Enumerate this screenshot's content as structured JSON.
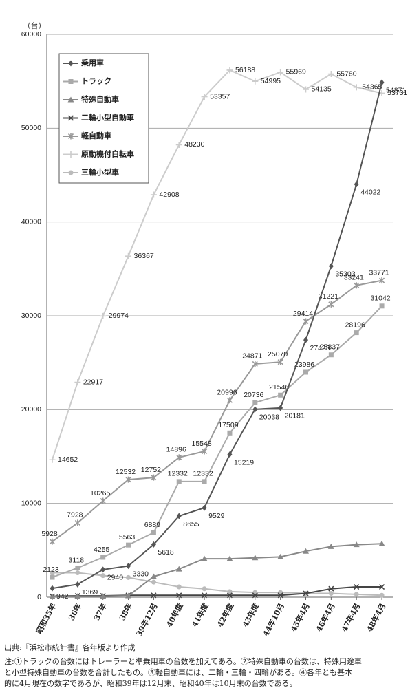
{
  "chart_data": {
    "type": "line",
    "unit_label": "（台）",
    "categories": [
      "昭和35年",
      "36年",
      "37年",
      "38年",
      "39年12月",
      "40年度",
      "41年度",
      "42年度",
      "43年度",
      "44年10月",
      "45年4月",
      "46年4月",
      "47年4月",
      "48年4月"
    ],
    "ylim": [
      0,
      60000
    ],
    "yticks": [
      0,
      10000,
      20000,
      30000,
      40000,
      50000,
      60000
    ],
    "grid": true,
    "legend": "top-left",
    "series": [
      {
        "name": "乗用車",
        "color": "#555555",
        "marker": "diamond",
        "show_labels": true,
        "values": [
          942,
          1369,
          2940,
          3330,
          5618,
          8655,
          9529,
          15219,
          20038,
          20181,
          27425,
          35303,
          44022,
          54871
        ]
      },
      {
        "name": "トラック",
        "color": "#aaaaaa",
        "marker": "square",
        "show_labels": true,
        "values": [
          2123,
          3118,
          4255,
          5563,
          6889,
          12332,
          12332,
          17509,
          20736,
          21546,
          23986,
          25837,
          28196,
          31042
        ]
      },
      {
        "name": "特殊自動車",
        "color": "#888888",
        "marker": "triangle",
        "show_labels": false,
        "values": [
          50,
          100,
          100,
          150,
          2200,
          3000,
          4100,
          4100,
          4200,
          4300,
          4900,
          5400,
          5600,
          5700
        ]
      },
      {
        "name": "二輪小型自動車",
        "color": "#444444",
        "marker": "x",
        "show_labels": false,
        "values": [
          100,
          150,
          150,
          200,
          200,
          200,
          200,
          200,
          200,
          200,
          400,
          900,
          1100,
          1100
        ]
      },
      {
        "name": "軽自動車",
        "color": "#999999",
        "marker": "asterisk",
        "show_labels": true,
        "values": [
          5928,
          7928,
          10265,
          12532,
          12752,
          14896,
          15548,
          20996,
          24871,
          25070,
          29414,
          31221,
          33241,
          33771
        ]
      },
      {
        "name": "原動機付自転車",
        "color": "#cccccc",
        "marker": "plus",
        "show_labels": true,
        "values": [
          14652,
          22917,
          29974,
          36367,
          42908,
          48230,
          53357,
          56188,
          54995,
          55969,
          54135,
          55780,
          54365,
          53731
        ]
      },
      {
        "name": "三輪小型車",
        "color": "#bbbbbb",
        "marker": "circle",
        "show_labels": false,
        "values": [
          2600,
          2600,
          2300,
          2100,
          1600,
          1100,
          900,
          600,
          500,
          500,
          400,
          400,
          300,
          200
        ]
      }
    ],
    "source": "出典:『浜松市統計書』各年版より作成",
    "notes": [
      "注:①トラックの台数にはトレーラーと準乗用車の台数を加えてある。②特殊自動車の台数は、特殊用途車",
      "と小型特殊自動車の台数を合計したもの。③軽自動車には、二輪・三輪・四輪がある。④各年とも基本",
      "的に4月現在の数字であるが、昭和39年は12月末、昭和40年は10月末の台数である。"
    ]
  }
}
